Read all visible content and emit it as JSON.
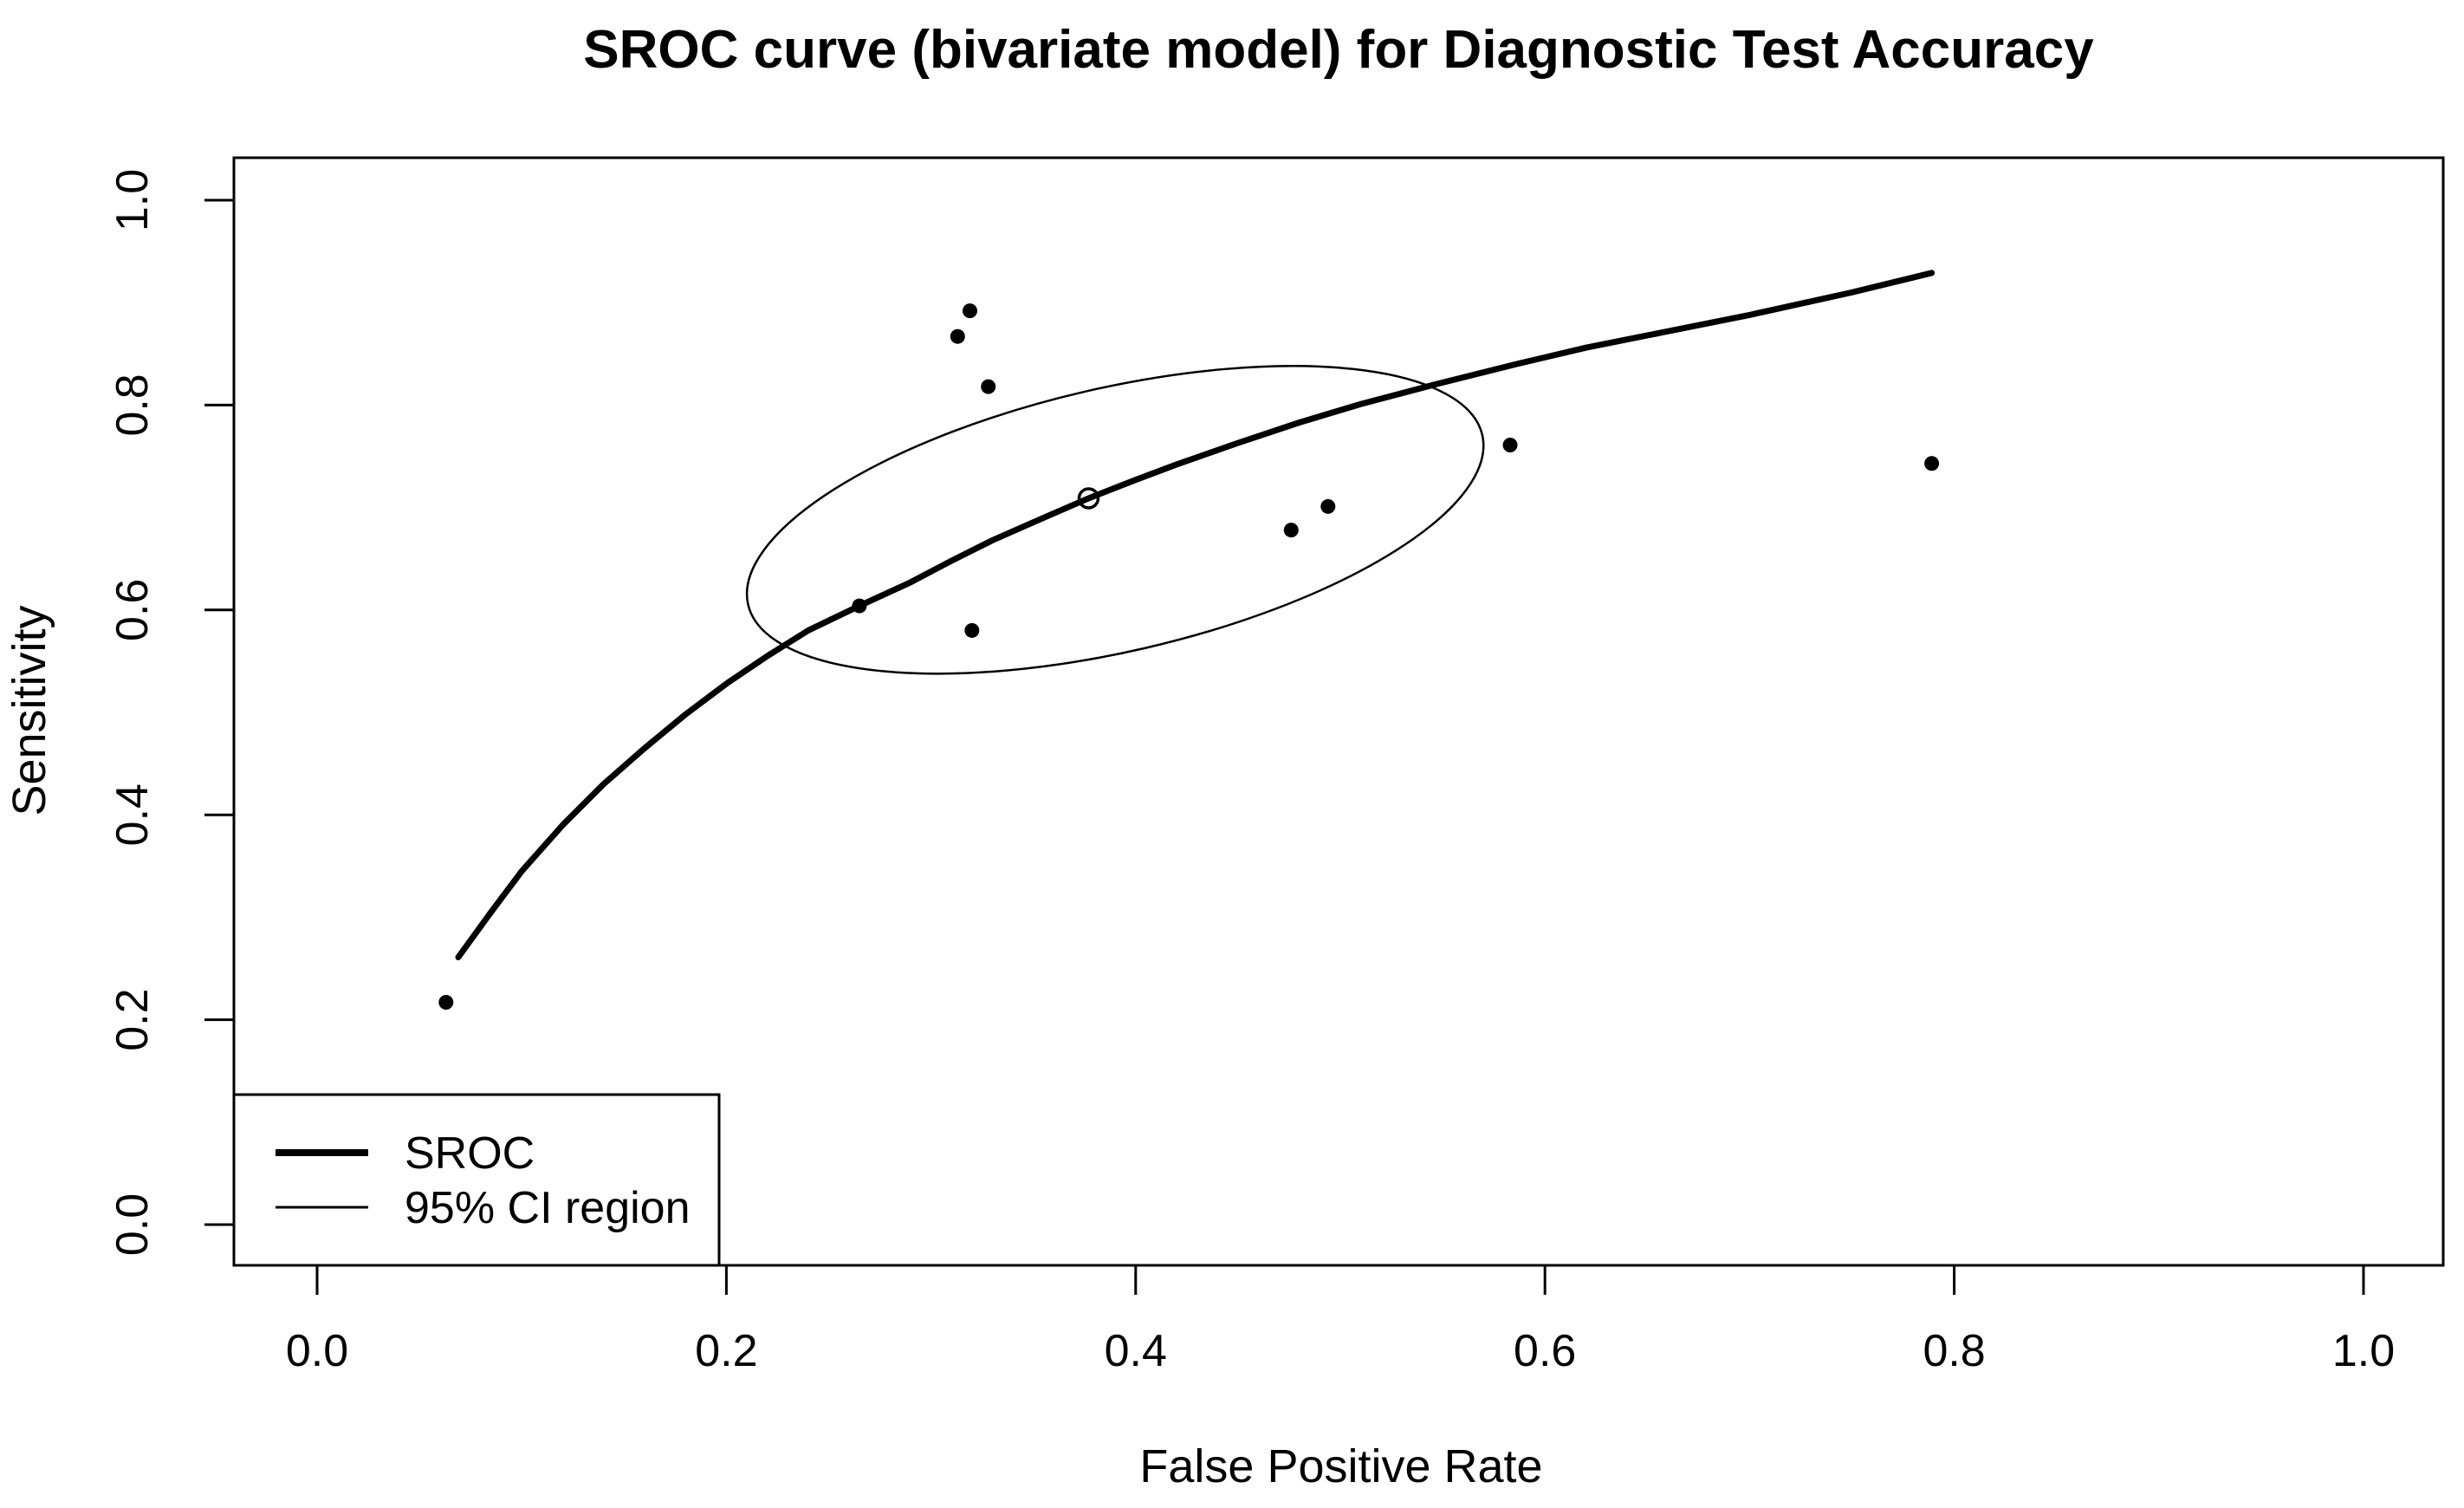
{
  "page": {
    "background_color": "#ffffff",
    "foreground_color": "#000000"
  },
  "chart_data": {
    "type": "line+scatter",
    "title": "SROC curve (bivariate model) for Diagnostic Test Accuracy",
    "xlabel": "False Positive Rate",
    "ylabel": "Sensitivity",
    "xlim": [
      0.0,
      1.0
    ],
    "ylim": [
      0.0,
      1.0
    ],
    "x_ticks": [
      0.0,
      0.2,
      0.4,
      0.6,
      0.8,
      1.0
    ],
    "y_ticks": [
      0.0,
      0.2,
      0.4,
      0.6,
      0.8,
      1.0
    ],
    "x_tick_labels": [
      "0.0",
      "0.2",
      "0.4",
      "0.6",
      "0.8",
      "1.0"
    ],
    "y_tick_labels": [
      "0.0",
      "0.2",
      "0.4",
      "0.6",
      "0.8",
      "1.0"
    ],
    "grid": false,
    "legend": {
      "position": "bottomleft",
      "entries": [
        {
          "label": "SROC",
          "line": "thick"
        },
        {
          "label": "95% CI region",
          "line": "thin"
        }
      ]
    },
    "sroc_curve": {
      "name": "SROC",
      "points": [
        [
          0.069,
          0.261
        ],
        [
          0.085,
          0.305
        ],
        [
          0.1,
          0.345
        ],
        [
          0.12,
          0.39
        ],
        [
          0.14,
          0.43
        ],
        [
          0.16,
          0.465
        ],
        [
          0.18,
          0.498
        ],
        [
          0.2,
          0.528
        ],
        [
          0.22,
          0.555
        ],
        [
          0.24,
          0.58
        ],
        [
          0.265,
          0.604
        ],
        [
          0.29,
          0.627
        ],
        [
          0.31,
          0.648
        ],
        [
          0.33,
          0.668
        ],
        [
          0.355,
          0.69
        ],
        [
          0.377,
          0.709
        ],
        [
          0.4,
          0.727
        ],
        [
          0.42,
          0.742
        ],
        [
          0.45,
          0.763
        ],
        [
          0.48,
          0.783
        ],
        [
          0.51,
          0.801
        ],
        [
          0.546,
          0.82
        ],
        [
          0.586,
          0.84
        ],
        [
          0.62,
          0.856
        ],
        [
          0.66,
          0.872
        ],
        [
          0.7,
          0.888
        ],
        [
          0.75,
          0.91
        ],
        [
          0.789,
          0.929
        ]
      ]
    },
    "ci_ellipse": {
      "name": "95% CI region",
      "center_fpr": 0.39,
      "center_sens": 0.688,
      "rx_fpr": 0.1841,
      "ry_sens": 0.1286,
      "rotation_deg": -13
    },
    "study_points": [
      [
        0.063,
        0.217
      ],
      [
        0.265,
        0.604
      ],
      [
        0.313,
        0.867
      ],
      [
        0.319,
        0.892
      ],
      [
        0.32,
        0.58
      ],
      [
        0.328,
        0.818
      ],
      [
        0.476,
        0.678
      ],
      [
        0.494,
        0.701
      ],
      [
        0.583,
        0.761
      ],
      [
        0.789,
        0.743
      ]
    ],
    "summary_point": {
      "fpr": 0.377,
      "sens": 0.709,
      "style": "open-circle"
    }
  }
}
